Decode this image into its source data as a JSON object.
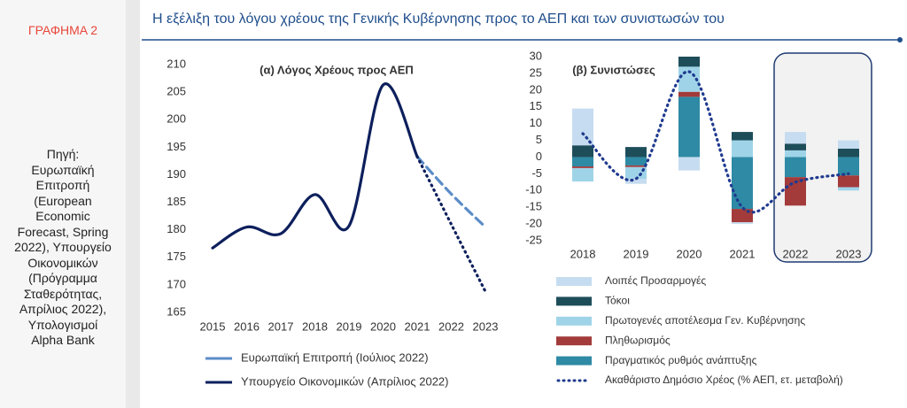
{
  "sidebar": {
    "label": "ΓΡΑΦΗΜΑ 2",
    "source_label": "Πηγή:",
    "source_text": "Ευρωπαϊκή Επιτροπή (European Economic Forecast, Spring 2022), Υπουργείο Οικονομικών (Πρόγραμμα Σταθερότητας, Απρίλιος 2022), Υπολογισμοί Alpha Bank"
  },
  "header": {
    "title": "Η εξέλιξη του λόγου χρέους της Γενικής Κυβέρνησης προς το ΑΕΠ και των συνιστωσών του"
  },
  "chart_data": [
    {
      "type": "line",
      "title": "(α) Λόγος Χρέους προς ΑΕΠ",
      "categories": [
        "2015",
        "2016",
        "2017",
        "2018",
        "2019",
        "2020",
        "2021",
        "2022",
        "2023"
      ],
      "ylim": [
        165,
        210
      ],
      "yticks": [
        165,
        170,
        175,
        180,
        185,
        190,
        195,
        200,
        205,
        210
      ],
      "grid": false,
      "series": [
        {
          "name": "Ευρωπαϊκή Επιτροπή (Ιούλιος 2022)",
          "color": "#5b8cc8",
          "style": "dashed",
          "values": [
            null,
            null,
            null,
            null,
            null,
            null,
            193.3,
            186.5,
            180.5
          ]
        },
        {
          "name": "Υπουργείο Οικονομικών (Απρίλιος 2022)",
          "color": "#0d1f5c",
          "style": "solid",
          "projection_from": "2021",
          "values": [
            176.7,
            180.5,
            179.3,
            186.4,
            180.7,
            206.3,
            193.3,
            181.0,
            168.8
          ]
        }
      ]
    },
    {
      "type": "stacked_bar",
      "title": "(β) Συνιστώσες",
      "categories": [
        "2018",
        "2019",
        "2020",
        "2021",
        "2022",
        "2023"
      ],
      "ylim": [
        -25,
        30
      ],
      "yticks": [
        -25,
        -20,
        -15,
        -10,
        -5,
        0,
        5,
        10,
        15,
        20,
        25,
        30
      ],
      "grid": false,
      "series": [
        {
          "name": "Λοιπές Προσαρμογές",
          "color": "#c6dcf0",
          "values": [
            11,
            -1.5,
            -4,
            -0.5,
            3.5,
            2.5
          ]
        },
        {
          "name": "Τόκοι",
          "color": "#1e4d5a",
          "values": [
            3.5,
            3,
            3,
            2.5,
            2,
            2.5
          ]
        },
        {
          "name": "Πρωτογενές αποτέλεσμα Γεν. Κυβέρνησης",
          "color": "#9fd4e8",
          "values": [
            -4,
            -3.5,
            7.5,
            5,
            2,
            -1
          ]
        },
        {
          "name": "Πληθωρισμός",
          "color": "#a33b3b",
          "values": [
            -0.5,
            -0.5,
            1.5,
            -4,
            -8.5,
            -3.5
          ]
        },
        {
          "name": "Πραγματικός ρυθμός ανάπτυξης",
          "color": "#2e8aa5",
          "values": [
            -2.8,
            -2.5,
            18,
            -15.5,
            -6,
            -5.5
          ]
        },
        {
          "name": "Ακαθάριστο Δημόσιο Χρέος (% ΑΕΠ, ετ. μεταβολή)",
          "color": "#1f3a8f",
          "type": "line",
          "style": "dotted",
          "values": [
            7,
            -6.5,
            25.5,
            -15,
            -7.5,
            -5
          ]
        }
      ]
    }
  ]
}
